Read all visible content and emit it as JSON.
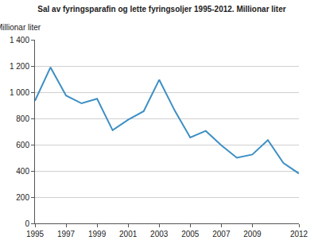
{
  "chart_data": {
    "type": "line",
    "title": "Sal av fyringsparafin og lette fyringsoljer 1995-2012. Millionar liter",
    "y_label": "Millionar liter",
    "x": [
      1995,
      1996,
      1997,
      1998,
      1999,
      2000,
      2001,
      2002,
      2003,
      2004,
      2005,
      2006,
      2007,
      2008,
      2009,
      2010,
      2011,
      2012
    ],
    "values": [
      935,
      1190,
      975,
      915,
      950,
      710,
      790,
      855,
      1095,
      860,
      655,
      705,
      595,
      500,
      525,
      635,
      460,
      380
    ],
    "color": "#3d8fc4",
    "xlim": [
      1995,
      2012
    ],
    "xticks": [
      1995,
      1997,
      1999,
      2001,
      2003,
      2005,
      2007,
      2009,
      2012
    ],
    "ylim": [
      0,
      1400
    ],
    "yticks": [
      0,
      200,
      400,
      600,
      800,
      {
        "value": 1000,
        "label": "1 000"
      },
      {
        "value": 1200,
        "label": "1 200"
      },
      {
        "value": 1400,
        "label": "1 400"
      }
    ],
    "grid": true
  }
}
